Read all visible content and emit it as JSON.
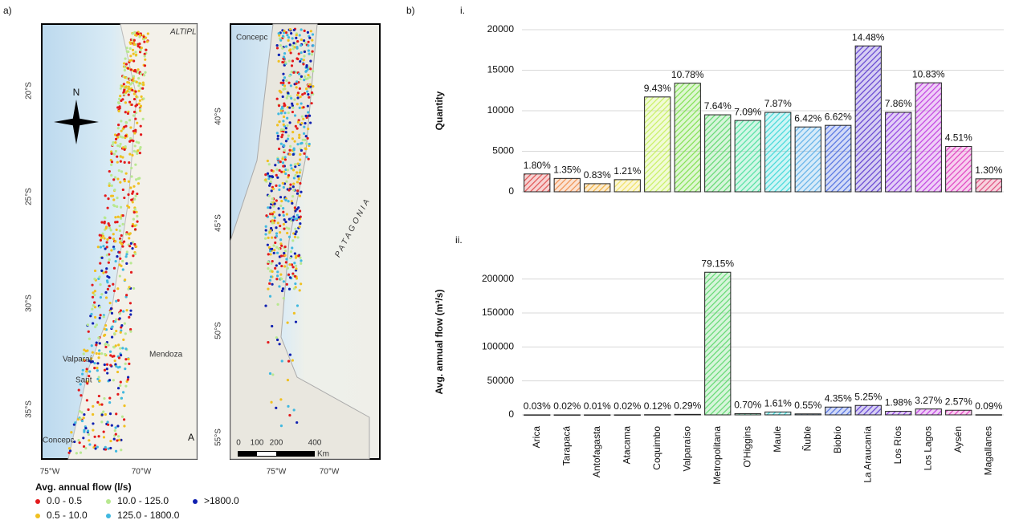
{
  "panel_labels": [
    "a)",
    "b)"
  ],
  "map": {
    "left_lat_labels": [
      "20°S",
      "25°S",
      "30°S",
      "35°S"
    ],
    "left_lon_labels": [
      "75°W",
      "70°W"
    ],
    "right_lat_labels": [
      "40°S",
      "45°S",
      "50°S",
      "55°S"
    ],
    "right_lon_labels": [
      "75°W",
      "70°W"
    ],
    "places": [
      "ALTIPL",
      "Valparaí",
      "Sant",
      "Mendoza",
      "Concepc",
      "A",
      "Concepc",
      "PATAGONIA"
    ],
    "compass": "N",
    "scale_labels": [
      "0",
      "100",
      "200",
      "400",
      "Km"
    ],
    "legend": {
      "title": "Avg. annual flow  (l/s)",
      "items": [
        {
          "label": "0.0 - 0.5",
          "color": "#e31a1c"
        },
        {
          "label": "0.5 - 10.0",
          "color": "#f0c020"
        },
        {
          "label": "10.0 - 125.0",
          "color": "#b8e890"
        },
        {
          "label": "125.0 - 1800.0",
          "color": "#40b8e0"
        },
        {
          "label": ">1800.0",
          "color": "#1020b0"
        }
      ]
    }
  },
  "chart_data": [
    {
      "type": "bar",
      "panel_label": "i.",
      "y_label": "Quantity",
      "categories": [
        "Arica",
        "Tarapacá",
        "Antofagasta",
        "Atacama",
        "Coquimbo",
        "Valparaíso",
        "Metropolitana",
        "O'Higgins",
        "Maule",
        "Ñuble",
        "Biobío",
        "La Araucanía",
        "Los Ríos",
        "Los Lagos",
        "Aysén",
        "Magallanes"
      ],
      "values": [
        2200,
        1650,
        1000,
        1500,
        11700,
        13400,
        9500,
        8800,
        9800,
        8000,
        8200,
        18000,
        9800,
        13450,
        5600,
        1600
      ],
      "annotations": [
        "1.80%",
        "1.35%",
        "0.83%",
        "1.21%",
        "9.43%",
        "10.78%",
        "7.64%",
        "7.09%",
        "7.87%",
        "6.42%",
        "6.62%",
        "14.48%",
        "7.86%",
        "10.83%",
        "4.51%",
        "1.30%"
      ],
      "colors": [
        "#e05050",
        "#f09050",
        "#f0b040",
        "#f0e060",
        "#c8f060",
        "#80e050",
        "#60d870",
        "#50e0a0",
        "#40d8d8",
        "#60b0e8",
        "#5070e0",
        "#6040d0",
        "#9040e0",
        "#c040e0",
        "#e040c0",
        "#e05080"
      ],
      "ylim": [
        0,
        20000
      ],
      "yticks": [
        0,
        5000,
        10000,
        15000,
        20000
      ],
      "grid": true
    },
    {
      "type": "bar",
      "panel_label": "ii.",
      "y_label": "Avg. annual flow (m³/s)",
      "categories": [
        "Arica",
        "Tarapacá",
        "Antofagasta",
        "Atacama",
        "Coquimbo",
        "Valparaíso",
        "Metropolitana",
        "O'Higgins",
        "Maule",
        "Ñuble",
        "Biobío",
        "La Araucanía",
        "Los Ríos",
        "Los Lagos",
        "Aysén",
        "Magallanes"
      ],
      "values": [
        80,
        50,
        30,
        50,
        320,
        770,
        210000,
        1850,
        4270,
        1460,
        11500,
        13900,
        5250,
        8670,
        6810,
        240
      ],
      "annotations": [
        "0.03%",
        "0.02%",
        "0.01%",
        "0.02%",
        "0.12%",
        "0.29%",
        "79.15%",
        "0.70%",
        "1.61%",
        "0.55%",
        "4.35%",
        "5.25%",
        "1.98%",
        "3.27%",
        "2.57%",
        "0.09%"
      ],
      "colors": [
        "#e05050",
        "#f09050",
        "#f0b040",
        "#f0e060",
        "#c8f060",
        "#80e050",
        "#60d870",
        "#50e0a0",
        "#40d8d8",
        "#60b0e8",
        "#5070e0",
        "#6040d0",
        "#9040e0",
        "#c040e0",
        "#e040c0",
        "#e05080"
      ],
      "ylim": [
        0,
        215000
      ],
      "yticks": [
        0,
        50000,
        100000,
        150000,
        200000
      ],
      "grid": true
    }
  ]
}
